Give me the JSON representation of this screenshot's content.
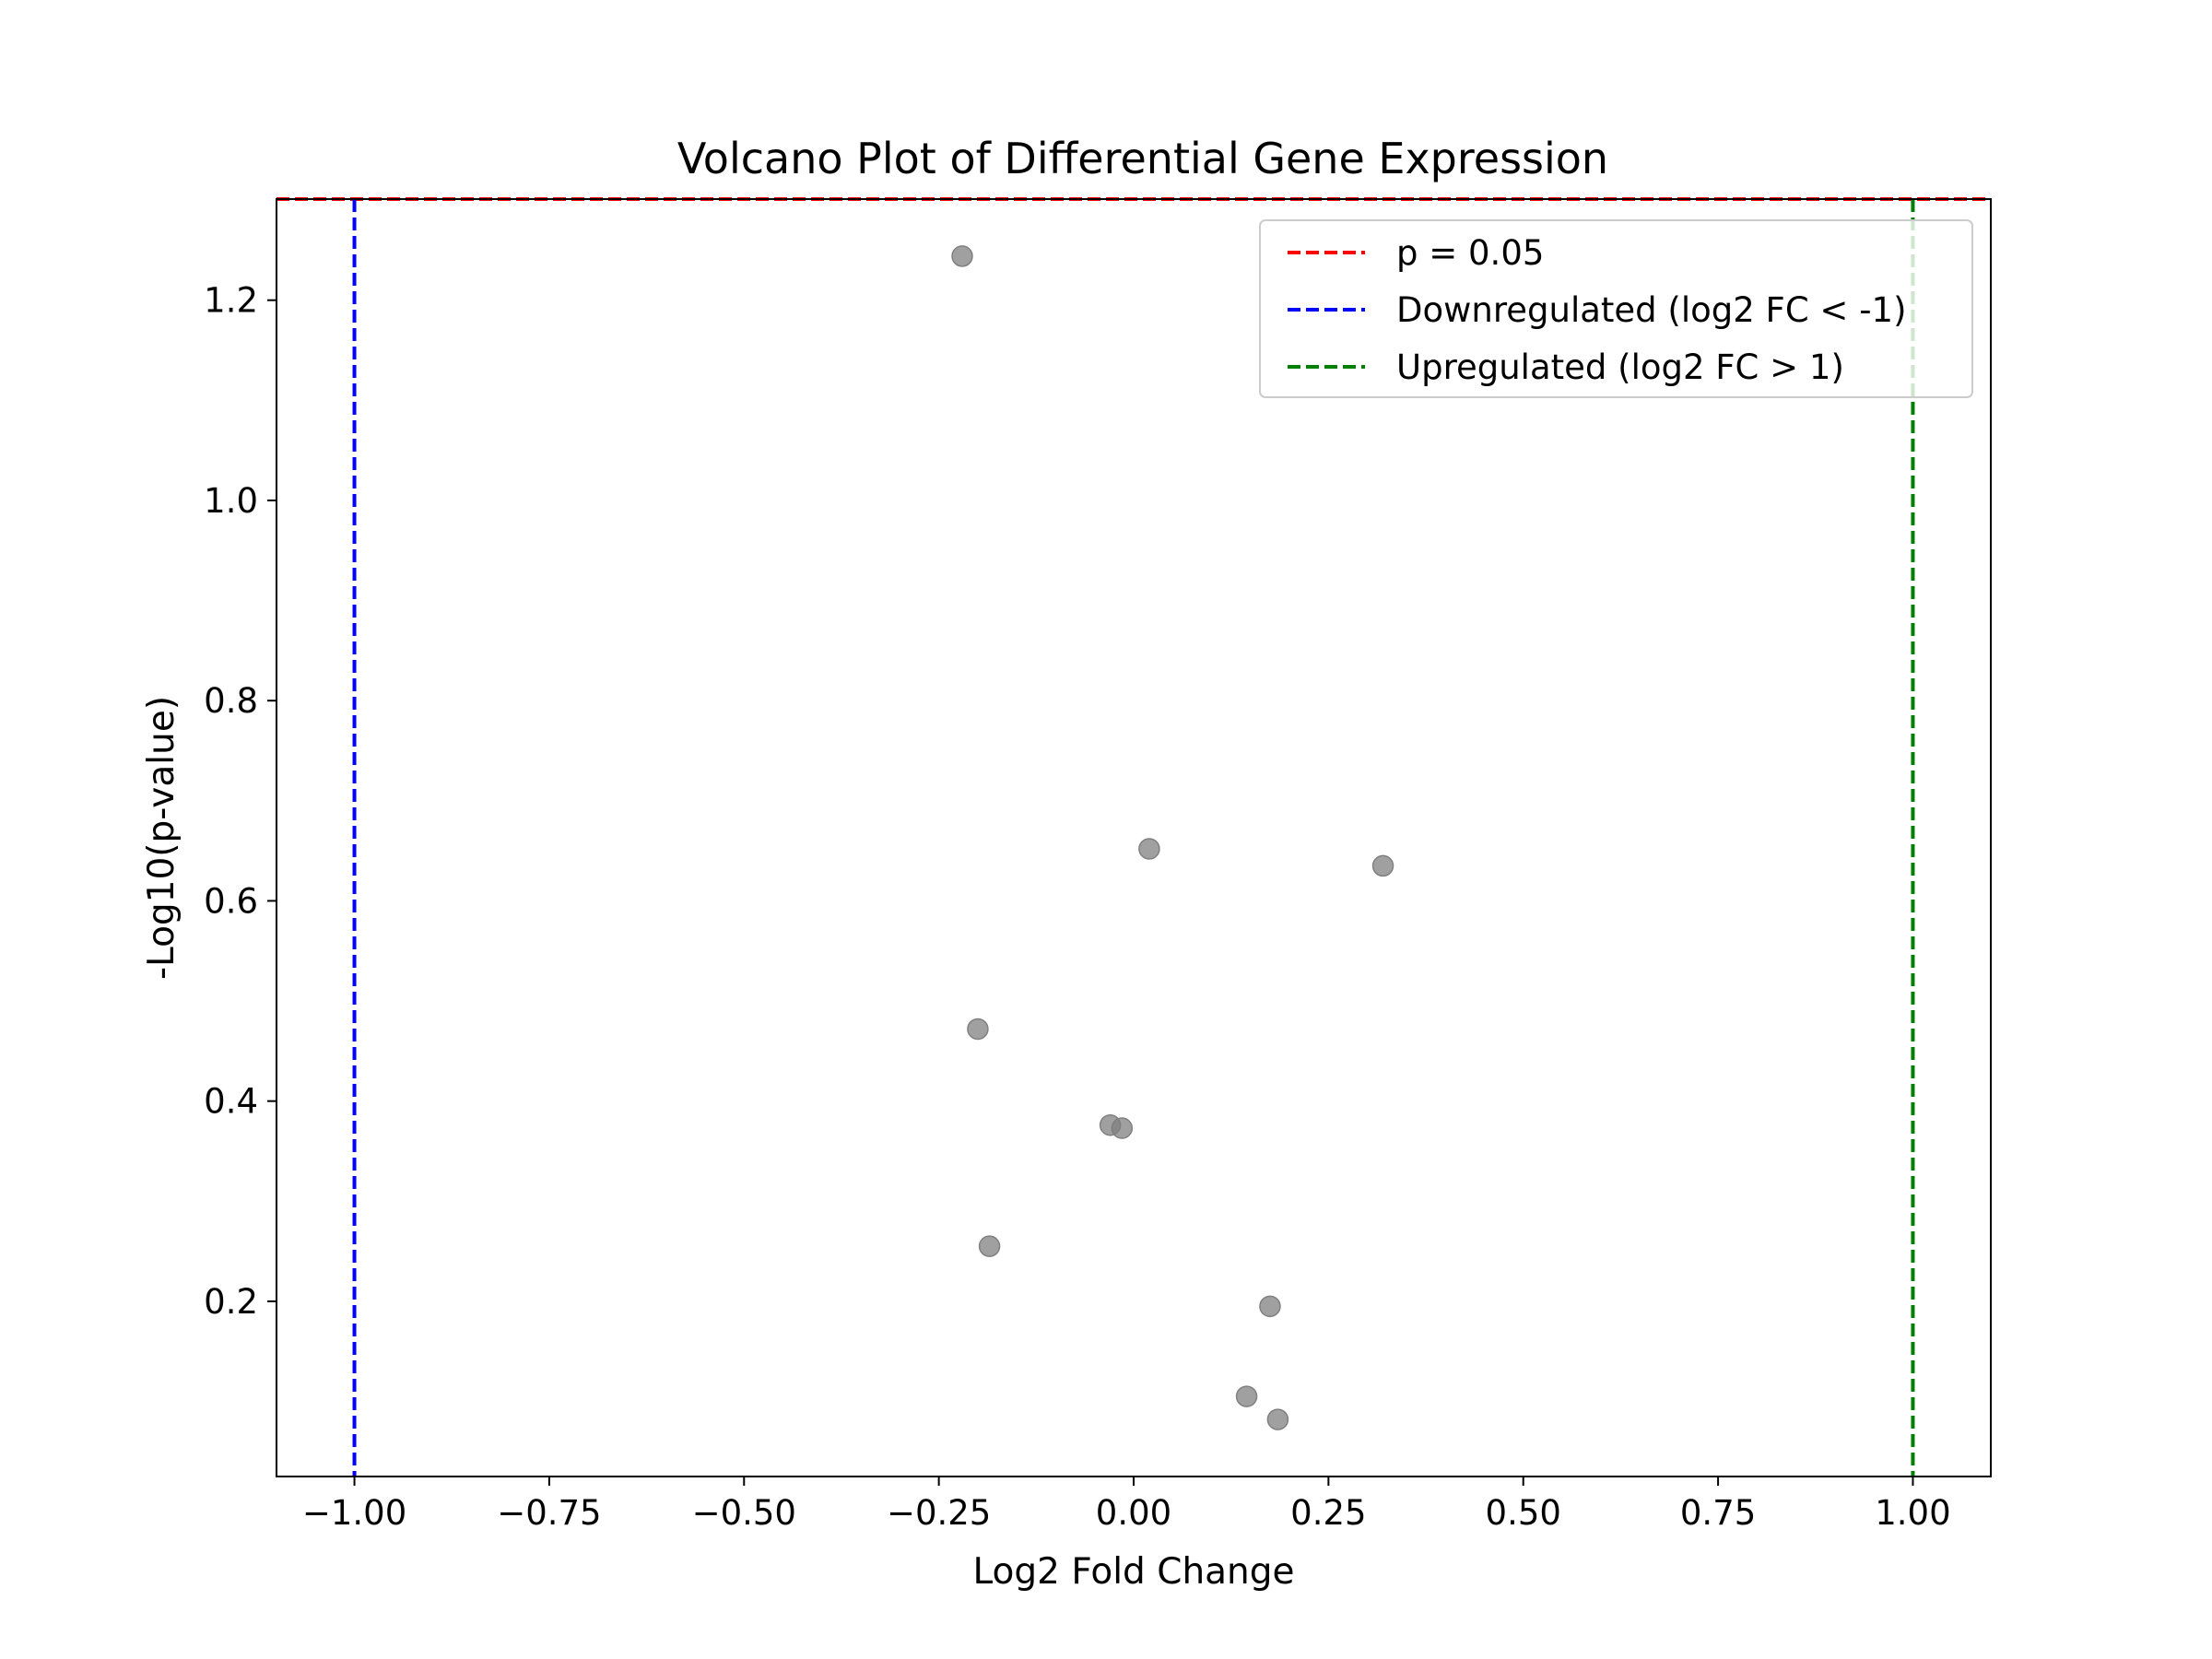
{
  "chart_data": {
    "type": "scatter",
    "title": "Volcano Plot of Differential Gene Expression",
    "xlabel": "Log2 Fold Change",
    "ylabel": "-Log10(p-value)",
    "xlim": [
      -1.1,
      1.1
    ],
    "ylim": [
      0.025,
      1.301
    ],
    "xticks": [
      -1.0,
      -0.75,
      -0.5,
      -0.25,
      0.0,
      0.25,
      0.5,
      0.75,
      1.0
    ],
    "xtick_labels": [
      "−1.00",
      "−0.75",
      "−0.50",
      "−0.25",
      "0.00",
      "0.25",
      "0.50",
      "0.75",
      "1.00"
    ],
    "yticks": [
      0.2,
      0.4,
      0.6,
      0.8,
      1.0,
      1.2
    ],
    "ytick_labels": [
      "0.2",
      "0.4",
      "0.6",
      "0.8",
      "1.0",
      "1.2"
    ],
    "points": [
      {
        "x": -0.22,
        "y": 1.244
      },
      {
        "x": 0.02,
        "y": 0.652
      },
      {
        "x": 0.32,
        "y": 0.635
      },
      {
        "x": -0.2,
        "y": 0.472
      },
      {
        "x": -0.03,
        "y": 0.376
      },
      {
        "x": -0.015,
        "y": 0.373
      },
      {
        "x": -0.185,
        "y": 0.255
      },
      {
        "x": 0.175,
        "y": 0.195
      },
      {
        "x": 0.145,
        "y": 0.105
      },
      {
        "x": 0.185,
        "y": 0.082
      }
    ],
    "point_color": "#808080",
    "reference_lines": [
      {
        "orientation": "horizontal",
        "value": 1.301,
        "color": "#ff0000",
        "style": "dashed",
        "legend": "p = 0.05"
      },
      {
        "orientation": "vertical",
        "value": -1.0,
        "color": "#0000ff",
        "style": "dashed",
        "legend": "Downregulated (log2 FC < -1)"
      },
      {
        "orientation": "vertical",
        "value": 1.0,
        "color": "#008000",
        "style": "dashed",
        "legend": "Upregulated (log2 FC > 1)"
      }
    ],
    "legend_position": "top-right",
    "grid": false
  }
}
